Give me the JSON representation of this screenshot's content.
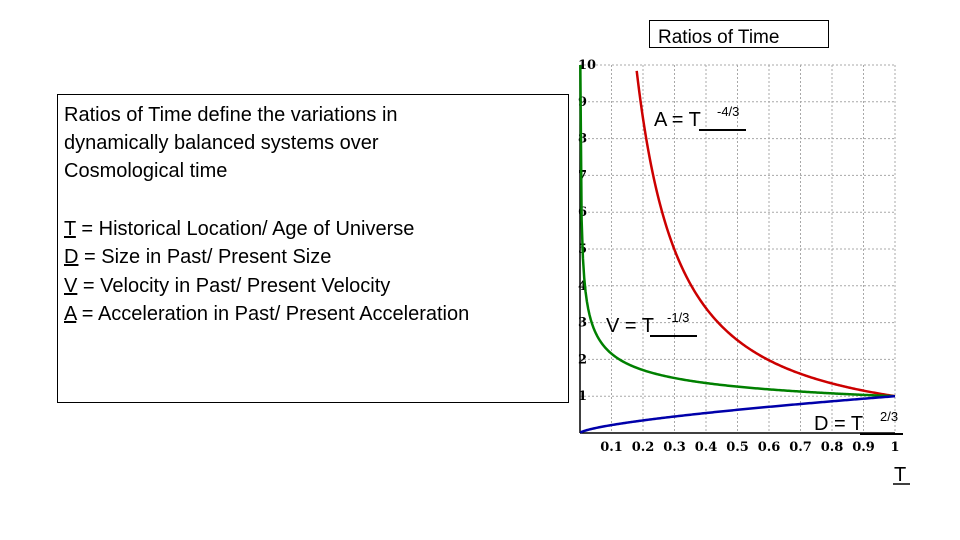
{
  "slide": {
    "title": "Ratios of Time",
    "intro_lines": [
      "Ratios of Time define the variations in",
      "dynamically balanced systems over",
      "Cosmological time"
    ],
    "definitions": [
      {
        "symbol": "T",
        "text": " = Historical Location/ Age of Universe"
      },
      {
        "symbol": "D",
        "text": " = Size in Past/ Present Size"
      },
      {
        "symbol": "V",
        "text": " = Velocity in Past/ Present Velocity"
      },
      {
        "symbol": "A",
        "text": " = Acceleration in Past/ Present Acceleration"
      }
    ]
  },
  "chart_data": {
    "type": "line",
    "x_ticks": [
      "0.1",
      "0.2",
      "0.3",
      "0.4",
      "0.5",
      "0.6",
      "0.7",
      "0.8",
      "0.9",
      "1"
    ],
    "y_ticks": [
      "1",
      "2",
      "3",
      "4",
      "5",
      "6",
      "7",
      "8",
      "9",
      "10"
    ],
    "xlim": [
      0,
      1
    ],
    "ylim": [
      0,
      10
    ],
    "grid": true,
    "xlabel": "T",
    "series": [
      {
        "name": "A",
        "exponent": -1.3333,
        "color": "#cc0000",
        "label_base": "A = T",
        "label_exp": "-4/3"
      },
      {
        "name": "V",
        "exponent": -0.3333,
        "color": "#008000",
        "label_base": "V = T",
        "label_exp": "-1/3"
      },
      {
        "name": "D",
        "exponent": 0.6667,
        "color": "#0000aa",
        "label_base": "D = T",
        "label_exp": "2/3"
      }
    ]
  }
}
